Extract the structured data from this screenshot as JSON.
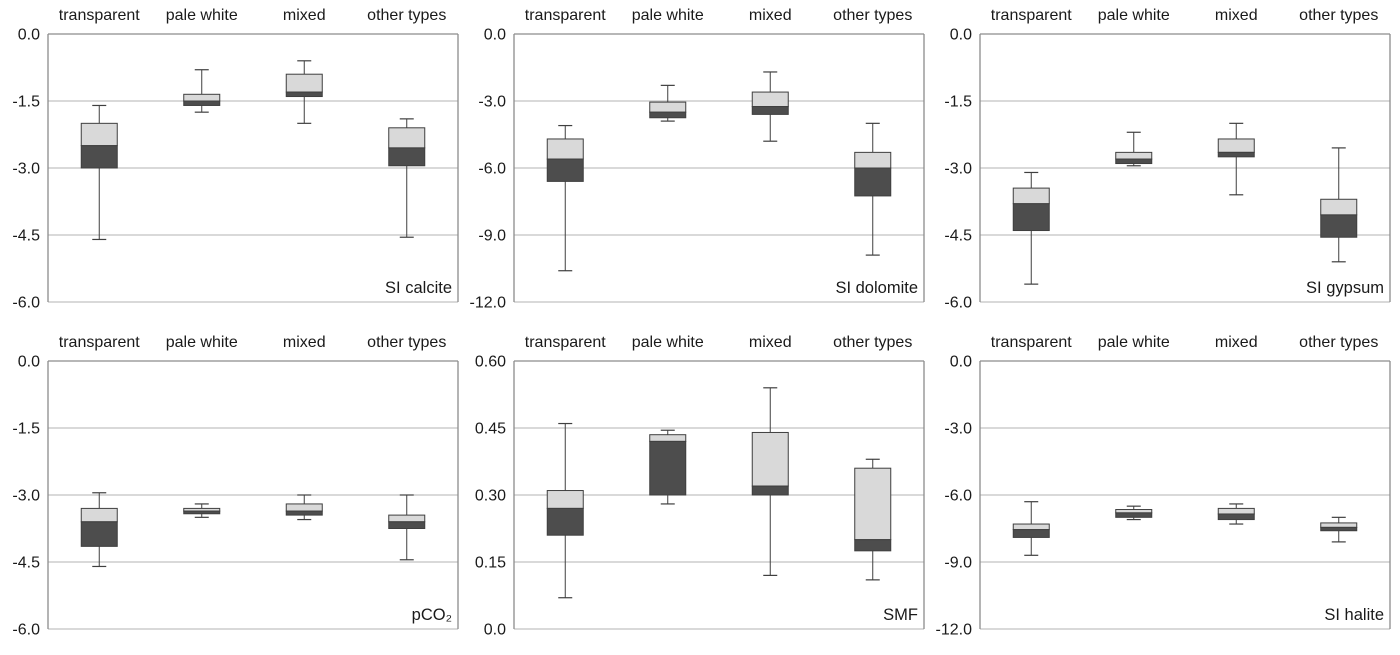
{
  "figure": {
    "background": "#ffffff",
    "text_color": "#1a1a1a",
    "colors": {
      "box_upper_fill": "#d9d9d9",
      "box_lower_fill": "#4d4d4d",
      "box_border": "#3f3f3f",
      "whisker": "#3f3f3f",
      "gridline": "#b3b3b3",
      "axis_line": "#8c8c8c"
    }
  },
  "chart_data": [
    {
      "type": "boxplot",
      "title": "SI calcite",
      "categories": [
        "transparent",
        "pale white",
        "mixed",
        "other types"
      ],
      "ylim": [
        -6.0,
        0.0
      ],
      "yticks": [
        0.0,
        -1.5,
        -3.0,
        -4.5,
        -6.0
      ],
      "ytick_labels": [
        "0.0",
        "-1.5",
        "-3.0",
        "-4.5",
        "-6.0"
      ],
      "grid": true,
      "legend": false,
      "series": [
        {
          "category": "transparent",
          "whisker_low": -4.6,
          "q1": -3.0,
          "median": -2.5,
          "q3": -2.0,
          "whisker_high": -1.6
        },
        {
          "category": "pale white",
          "whisker_low": -1.75,
          "q1": -1.6,
          "median": -1.5,
          "q3": -1.35,
          "whisker_high": -0.8
        },
        {
          "category": "mixed",
          "whisker_low": -2.0,
          "q1": -1.4,
          "median": -1.3,
          "q3": -0.9,
          "whisker_high": -0.6
        },
        {
          "category": "other types",
          "whisker_low": -4.55,
          "q1": -2.95,
          "median": -2.55,
          "q3": -2.1,
          "whisker_high": -1.9
        }
      ]
    },
    {
      "type": "boxplot",
      "title": "SI dolomite",
      "categories": [
        "transparent",
        "pale white",
        "mixed",
        "other types"
      ],
      "ylim": [
        -12.0,
        0.0
      ],
      "yticks": [
        0.0,
        -3.0,
        -6.0,
        -9.0,
        -12.0
      ],
      "ytick_labels": [
        "0.0",
        "-3.0",
        "-6.0",
        "-9.0",
        "-12.0"
      ],
      "grid": true,
      "legend": false,
      "series": [
        {
          "category": "transparent",
          "whisker_low": -10.6,
          "q1": -6.6,
          "median": -5.6,
          "q3": -4.7,
          "whisker_high": -4.1
        },
        {
          "category": "pale white",
          "whisker_low": -3.9,
          "q1": -3.75,
          "median": -3.5,
          "q3": -3.05,
          "whisker_high": -2.3
        },
        {
          "category": "mixed",
          "whisker_low": -4.8,
          "q1": -3.6,
          "median": -3.25,
          "q3": -2.6,
          "whisker_high": -1.7
        },
        {
          "category": "other types",
          "whisker_low": -9.9,
          "q1": -7.25,
          "median": -6.0,
          "q3": -5.3,
          "whisker_high": -4.0
        }
      ]
    },
    {
      "type": "boxplot",
      "title": "SI gypsum",
      "categories": [
        "transparent",
        "pale white",
        "mixed",
        "other types"
      ],
      "ylim": [
        -6.0,
        0.0
      ],
      "yticks": [
        0.0,
        -1.5,
        -3.0,
        -4.5,
        -6.0
      ],
      "ytick_labels": [
        "0.0",
        "-1.5",
        "-3.0",
        "-4.5",
        "-6.0"
      ],
      "grid": true,
      "legend": false,
      "series": [
        {
          "category": "transparent",
          "whisker_low": -5.6,
          "q1": -4.4,
          "median": -3.8,
          "q3": -3.45,
          "whisker_high": -3.1
        },
        {
          "category": "pale white",
          "whisker_low": -2.95,
          "q1": -2.9,
          "median": -2.8,
          "q3": -2.65,
          "whisker_high": -2.2
        },
        {
          "category": "mixed",
          "whisker_low": -3.6,
          "q1": -2.75,
          "median": -2.65,
          "q3": -2.35,
          "whisker_high": -2.0
        },
        {
          "category": "other types",
          "whisker_low": -5.1,
          "q1": -4.55,
          "median": -4.05,
          "q3": -3.7,
          "whisker_high": -2.55
        }
      ]
    },
    {
      "type": "boxplot",
      "title": "pCO₂",
      "categories": [
        "transparent",
        "pale white",
        "mixed",
        "other types"
      ],
      "ylim": [
        -6.0,
        0.0
      ],
      "yticks": [
        0.0,
        -1.5,
        -3.0,
        -4.5,
        -6.0
      ],
      "ytick_labels": [
        "0.0",
        "-1.5",
        "-3.0",
        "-4.5",
        "-6.0"
      ],
      "grid": true,
      "legend": false,
      "series": [
        {
          "category": "transparent",
          "whisker_low": -4.6,
          "q1": -4.15,
          "median": -3.6,
          "q3": -3.3,
          "whisker_high": -2.95
        },
        {
          "category": "pale white",
          "whisker_low": -3.5,
          "q1": -3.42,
          "median": -3.36,
          "q3": -3.3,
          "whisker_high": -3.2
        },
        {
          "category": "mixed",
          "whisker_low": -3.55,
          "q1": -3.45,
          "median": -3.36,
          "q3": -3.2,
          "whisker_high": -3.0
        },
        {
          "category": "other types",
          "whisker_low": -4.45,
          "q1": -3.75,
          "median": -3.6,
          "q3": -3.45,
          "whisker_high": -3.0
        }
      ]
    },
    {
      "type": "boxplot",
      "title": "SMF",
      "categories": [
        "transparent",
        "pale white",
        "mixed",
        "other types"
      ],
      "ylim": [
        0.0,
        0.6
      ],
      "yticks": [
        0.6,
        0.45,
        0.3,
        0.15,
        0.0
      ],
      "ytick_labels": [
        "0.60",
        "0.45",
        "0.30",
        "0.15",
        "0.0"
      ],
      "grid": true,
      "legend": false,
      "series": [
        {
          "category": "transparent",
          "whisker_low": 0.07,
          "q1": 0.21,
          "median": 0.27,
          "q3": 0.31,
          "whisker_high": 0.46
        },
        {
          "category": "pale white",
          "whisker_low": 0.28,
          "q1": 0.3,
          "median": 0.42,
          "q3": 0.435,
          "whisker_high": 0.445
        },
        {
          "category": "mixed",
          "whisker_low": 0.12,
          "q1": 0.3,
          "median": 0.32,
          "q3": 0.44,
          "whisker_high": 0.54
        },
        {
          "category": "other types",
          "whisker_low": 0.11,
          "q1": 0.175,
          "median": 0.2,
          "q3": 0.36,
          "whisker_high": 0.38
        }
      ]
    },
    {
      "type": "boxplot",
      "title": "SI halite",
      "categories": [
        "transparent",
        "pale white",
        "mixed",
        "other types"
      ],
      "ylim": [
        -12.0,
        0.0
      ],
      "yticks": [
        0.0,
        -3.0,
        -6.0,
        -9.0,
        -12.0
      ],
      "ytick_labels": [
        "0.0",
        "-3.0",
        "-6.0",
        "-9.0",
        "-12.0"
      ],
      "grid": true,
      "legend": false,
      "series": [
        {
          "category": "transparent",
          "whisker_low": -8.7,
          "q1": -7.9,
          "median": -7.55,
          "q3": -7.3,
          "whisker_high": -6.3
        },
        {
          "category": "pale white",
          "whisker_low": -7.1,
          "q1": -7.0,
          "median": -6.8,
          "q3": -6.65,
          "whisker_high": -6.5
        },
        {
          "category": "mixed",
          "whisker_low": -7.3,
          "q1": -7.1,
          "median": -6.85,
          "q3": -6.6,
          "whisker_high": -6.4
        },
        {
          "category": "other types",
          "whisker_low": -8.1,
          "q1": -7.6,
          "median": -7.45,
          "q3": -7.25,
          "whisker_high": -7.0
        }
      ]
    }
  ]
}
